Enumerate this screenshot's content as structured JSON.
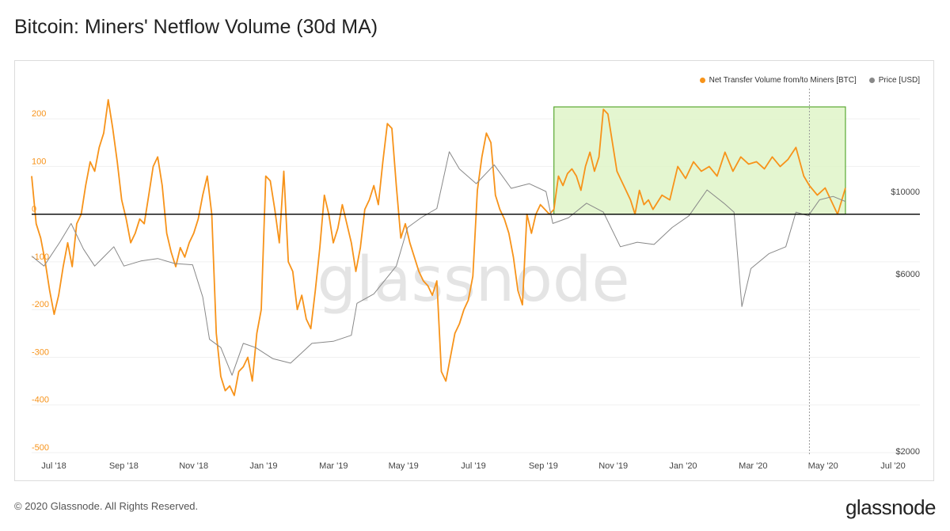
{
  "title": "Bitcoin: Miners' Netflow Volume (30d MA)",
  "footer": {
    "copyright": "© 2020 Glassnode. All Rights Reserved.",
    "brand": "glassnode"
  },
  "watermark": "glassnode",
  "colors": {
    "netflow": "#f7931a",
    "price": "#888888",
    "zero_line": "#000000",
    "highlight_fill": "#dff5c8",
    "highlight_stroke": "#5aa832"
  },
  "legend": {
    "netflow": "Net Transfer Volume from/to Miners [BTC]",
    "price": "Price [USD]"
  },
  "chart_data": {
    "type": "line",
    "title": "Bitcoin: Miners' Netflow Volume (30d MA)",
    "x_ticks": [
      "Jul '18",
      "Sep '18",
      "Nov '18",
      "Jan '19",
      "Mar '19",
      "May '19",
      "Jul '19",
      "Sep '19",
      "Nov '19",
      "Jan '20",
      "Mar '20",
      "May '20",
      "Jul '20"
    ],
    "x_range": [
      "2018-06-20",
      "2020-07-13"
    ],
    "y_left": {
      "ticks": [
        "200",
        "100",
        "0",
        "-100",
        "-200",
        "-300",
        "-400",
        "-500"
      ],
      "range": [
        -500,
        250
      ]
    },
    "y_right": {
      "ticks": [
        "$10000",
        "$6000",
        "$2000"
      ],
      "log": true
    },
    "highlight_box": {
      "x_start": "2019-09-27",
      "x_end": "2020-06-12",
      "y_start": 0,
      "y_end": 225
    },
    "marker_date": "2020-05-11",
    "series": [
      {
        "name": "Net Transfer Volume from/to Miners [BTC]",
        "axis": "left",
        "points": [
          [
            "2018-06-20",
            80
          ],
          [
            "2018-06-24",
            -20
          ],
          [
            "2018-06-28",
            -50
          ],
          [
            "2018-07-02",
            -100
          ],
          [
            "2018-07-06",
            -160
          ],
          [
            "2018-07-10",
            -210
          ],
          [
            "2018-07-14",
            -170
          ],
          [
            "2018-07-18",
            -110
          ],
          [
            "2018-07-22",
            -60
          ],
          [
            "2018-07-26",
            -110
          ],
          [
            "2018-07-30",
            -20
          ],
          [
            "2018-08-03",
            0
          ],
          [
            "2018-08-07",
            60
          ],
          [
            "2018-08-11",
            110
          ],
          [
            "2018-08-15",
            90
          ],
          [
            "2018-08-19",
            140
          ],
          [
            "2018-08-23",
            170
          ],
          [
            "2018-08-27",
            240
          ],
          [
            "2018-08-31",
            180
          ],
          [
            "2018-09-04",
            110
          ],
          [
            "2018-09-08",
            30
          ],
          [
            "2018-09-12",
            -10
          ],
          [
            "2018-09-16",
            -60
          ],
          [
            "2018-09-20",
            -40
          ],
          [
            "2018-09-24",
            -10
          ],
          [
            "2018-09-28",
            -20
          ],
          [
            "2018-10-02",
            40
          ],
          [
            "2018-10-06",
            100
          ],
          [
            "2018-10-10",
            120
          ],
          [
            "2018-10-14",
            60
          ],
          [
            "2018-10-18",
            -40
          ],
          [
            "2018-10-22",
            -80
          ],
          [
            "2018-10-26",
            -110
          ],
          [
            "2018-10-30",
            -70
          ],
          [
            "2018-11-03",
            -90
          ],
          [
            "2018-11-07",
            -60
          ],
          [
            "2018-11-11",
            -40
          ],
          [
            "2018-11-15",
            -10
          ],
          [
            "2018-11-19",
            40
          ],
          [
            "2018-11-23",
            80
          ],
          [
            "2018-11-27",
            0
          ],
          [
            "2018-12-01",
            -250
          ],
          [
            "2018-12-05",
            -340
          ],
          [
            "2018-12-09",
            -370
          ],
          [
            "2018-12-13",
            -360
          ],
          [
            "2018-12-17",
            -380
          ],
          [
            "2018-12-21",
            -330
          ],
          [
            "2018-12-25",
            -320
          ],
          [
            "2018-12-29",
            -300
          ],
          [
            "2019-01-02",
            -350
          ],
          [
            "2019-01-06",
            -250
          ],
          [
            "2019-01-10",
            -200
          ],
          [
            "2019-01-14",
            80
          ],
          [
            "2019-01-18",
            70
          ],
          [
            "2019-01-22",
            10
          ],
          [
            "2019-01-26",
            -60
          ],
          [
            "2019-01-30",
            90
          ],
          [
            "2019-02-03",
            -100
          ],
          [
            "2019-02-07",
            -120
          ],
          [
            "2019-02-11",
            -200
          ],
          [
            "2019-02-15",
            -170
          ],
          [
            "2019-02-19",
            -220
          ],
          [
            "2019-02-23",
            -240
          ],
          [
            "2019-02-27",
            -160
          ],
          [
            "2019-03-03",
            -70
          ],
          [
            "2019-03-07",
            40
          ],
          [
            "2019-03-11",
            0
          ],
          [
            "2019-03-15",
            -60
          ],
          [
            "2019-03-19",
            -30
          ],
          [
            "2019-03-23",
            20
          ],
          [
            "2019-03-27",
            -20
          ],
          [
            "2019-03-31",
            -60
          ],
          [
            "2019-04-04",
            -120
          ],
          [
            "2019-04-08",
            -70
          ],
          [
            "2019-04-12",
            10
          ],
          [
            "2019-04-16",
            30
          ],
          [
            "2019-04-20",
            60
          ],
          [
            "2019-04-24",
            20
          ],
          [
            "2019-04-28",
            110
          ],
          [
            "2019-05-02",
            190
          ],
          [
            "2019-05-06",
            180
          ],
          [
            "2019-05-10",
            60
          ],
          [
            "2019-05-14",
            -50
          ],
          [
            "2019-05-18",
            -20
          ],
          [
            "2019-05-22",
            -60
          ],
          [
            "2019-05-26",
            -90
          ],
          [
            "2019-05-30",
            -120
          ],
          [
            "2019-06-03",
            -140
          ],
          [
            "2019-06-07",
            -150
          ],
          [
            "2019-06-11",
            -170
          ],
          [
            "2019-06-15",
            -140
          ],
          [
            "2019-06-19",
            -330
          ],
          [
            "2019-06-23",
            -350
          ],
          [
            "2019-06-27",
            -300
          ],
          [
            "2019-07-01",
            -250
          ],
          [
            "2019-07-05",
            -230
          ],
          [
            "2019-07-09",
            -200
          ],
          [
            "2019-07-13",
            -180
          ],
          [
            "2019-07-17",
            -130
          ],
          [
            "2019-07-21",
            50
          ],
          [
            "2019-07-25",
            120
          ],
          [
            "2019-07-29",
            170
          ],
          [
            "2019-08-02",
            150
          ],
          [
            "2019-08-06",
            40
          ],
          [
            "2019-08-10",
            10
          ],
          [
            "2019-08-14",
            -10
          ],
          [
            "2019-08-18",
            -40
          ],
          [
            "2019-08-22",
            -90
          ],
          [
            "2019-08-26",
            -160
          ],
          [
            "2019-08-30",
            -190
          ],
          [
            "2019-09-03",
            0
          ],
          [
            "2019-09-07",
            -40
          ],
          [
            "2019-09-11",
            0
          ],
          [
            "2019-09-15",
            20
          ],
          [
            "2019-09-19",
            10
          ],
          [
            "2019-09-23",
            0
          ],
          [
            "2019-09-27",
            10
          ],
          [
            "2019-10-01",
            80
          ],
          [
            "2019-10-05",
            60
          ],
          [
            "2019-10-09",
            85
          ],
          [
            "2019-10-13",
            95
          ],
          [
            "2019-10-17",
            80
          ],
          [
            "2019-10-21",
            50
          ],
          [
            "2019-10-25",
            100
          ],
          [
            "2019-10-29",
            130
          ],
          [
            "2019-11-02",
            90
          ],
          [
            "2019-11-06",
            120
          ],
          [
            "2019-11-10",
            220
          ],
          [
            "2019-11-14",
            210
          ],
          [
            "2019-11-18",
            150
          ],
          [
            "2019-11-22",
            90
          ],
          [
            "2019-11-26",
            70
          ],
          [
            "2019-11-30",
            50
          ],
          [
            "2019-12-04",
            30
          ],
          [
            "2019-12-08",
            0
          ],
          [
            "2019-12-12",
            50
          ],
          [
            "2019-12-16",
            20
          ],
          [
            "2019-12-20",
            30
          ],
          [
            "2019-12-24",
            10
          ],
          [
            "2020-01-01",
            40
          ],
          [
            "2020-01-08",
            30
          ],
          [
            "2020-01-15",
            100
          ],
          [
            "2020-01-22",
            75
          ],
          [
            "2020-01-29",
            110
          ],
          [
            "2020-02-05",
            90
          ],
          [
            "2020-02-12",
            100
          ],
          [
            "2020-02-19",
            80
          ],
          [
            "2020-02-26",
            130
          ],
          [
            "2020-03-04",
            90
          ],
          [
            "2020-03-11",
            120
          ],
          [
            "2020-03-18",
            105
          ],
          [
            "2020-03-25",
            110
          ],
          [
            "2020-04-01",
            95
          ],
          [
            "2020-04-08",
            120
          ],
          [
            "2020-04-15",
            100
          ],
          [
            "2020-04-22",
            115
          ],
          [
            "2020-04-29",
            140
          ],
          [
            "2020-05-06",
            80
          ],
          [
            "2020-05-11",
            60
          ],
          [
            "2020-05-18",
            40
          ],
          [
            "2020-05-25",
            55
          ],
          [
            "2020-06-01",
            20
          ],
          [
            "2020-06-05",
            0
          ],
          [
            "2020-06-12",
            55
          ]
        ]
      },
      {
        "name": "Price [USD]",
        "axis": "right",
        "points": [
          [
            "2018-06-20",
            6700
          ],
          [
            "2018-07-01",
            6300
          ],
          [
            "2018-07-15",
            7300
          ],
          [
            "2018-07-25",
            8200
          ],
          [
            "2018-08-05",
            7000
          ],
          [
            "2018-08-15",
            6300
          ],
          [
            "2018-09-01",
            7100
          ],
          [
            "2018-09-10",
            6300
          ],
          [
            "2018-09-25",
            6500
          ],
          [
            "2018-10-10",
            6600
          ],
          [
            "2018-10-25",
            6400
          ],
          [
            "2018-11-10",
            6350
          ],
          [
            "2018-11-19",
            5200
          ],
          [
            "2018-11-25",
            4000
          ],
          [
            "2018-12-05",
            3800
          ],
          [
            "2018-12-15",
            3200
          ],
          [
            "2018-12-25",
            3900
          ],
          [
            "2019-01-05",
            3800
          ],
          [
            "2019-01-20",
            3550
          ],
          [
            "2019-02-05",
            3450
          ],
          [
            "2019-02-24",
            3900
          ],
          [
            "2019-03-15",
            3950
          ],
          [
            "2019-03-31",
            4100
          ],
          [
            "2019-04-05",
            5000
          ],
          [
            "2019-04-20",
            5300
          ],
          [
            "2019-05-10",
            6300
          ],
          [
            "2019-05-20",
            8000
          ],
          [
            "2019-06-01",
            8500
          ],
          [
            "2019-06-15",
            9000
          ],
          [
            "2019-06-26",
            12800
          ],
          [
            "2019-07-05",
            11500
          ],
          [
            "2019-07-20",
            10500
          ],
          [
            "2019-08-05",
            11800
          ],
          [
            "2019-08-20",
            10200
          ],
          [
            "2019-09-05",
            10500
          ],
          [
            "2019-09-20",
            10000
          ],
          [
            "2019-09-26",
            8200
          ],
          [
            "2019-10-10",
            8500
          ],
          [
            "2019-10-26",
            9300
          ],
          [
            "2019-11-10",
            8800
          ],
          [
            "2019-11-25",
            7100
          ],
          [
            "2019-12-10",
            7300
          ],
          [
            "2019-12-25",
            7200
          ],
          [
            "2020-01-10",
            8000
          ],
          [
            "2020-01-25",
            8600
          ],
          [
            "2020-02-10",
            10100
          ],
          [
            "2020-02-25",
            9300
          ],
          [
            "2020-03-05",
            8800
          ],
          [
            "2020-03-12",
            4900
          ],
          [
            "2020-03-20",
            6200
          ],
          [
            "2020-04-05",
            6800
          ],
          [
            "2020-04-20",
            7100
          ],
          [
            "2020-04-29",
            8800
          ],
          [
            "2020-05-10",
            8600
          ],
          [
            "2020-05-20",
            9500
          ],
          [
            "2020-06-01",
            9700
          ],
          [
            "2020-06-12",
            9400
          ]
        ]
      }
    ]
  }
}
